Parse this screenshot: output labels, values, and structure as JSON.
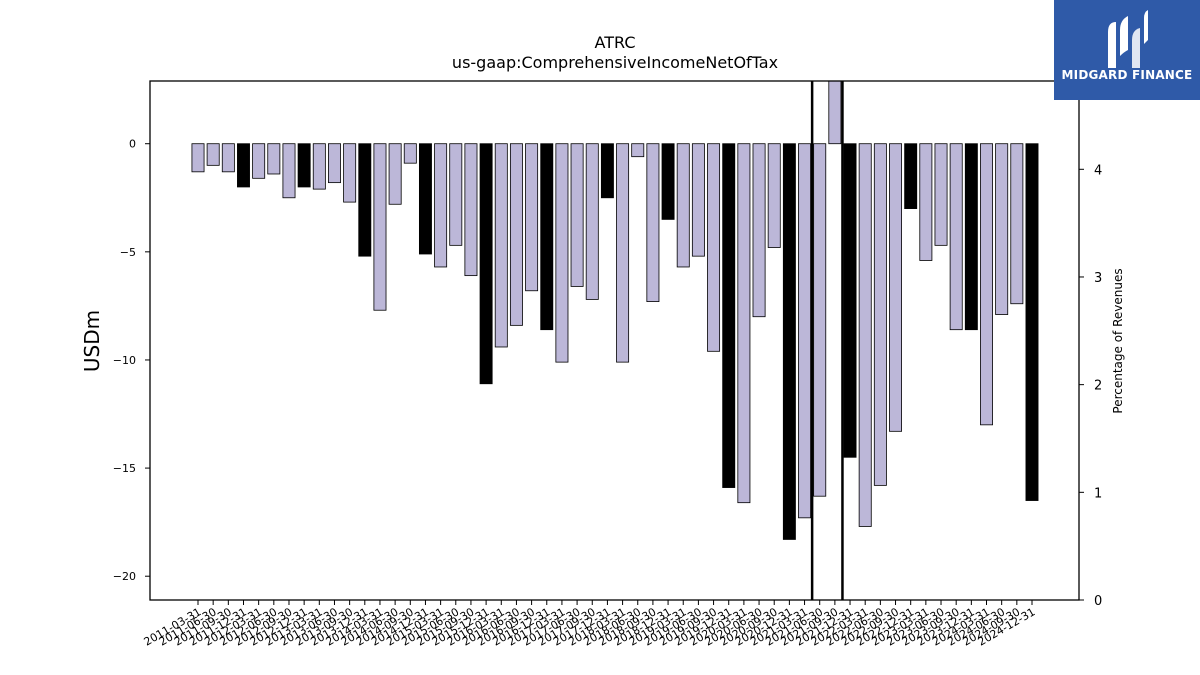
{
  "chart_data": {
    "type": "bar",
    "title": "ATRC",
    "subtitle": "us-gaap:ComprehensiveIncomeNetOfTax",
    "ylabel": "USDm",
    "y2label": "Percentage of Revenues",
    "ylim": [
      -21.1,
      2.9
    ],
    "y2lim": [
      0,
      4.82
    ],
    "yticks": [
      0,
      -5,
      -10,
      -15,
      -20
    ],
    "y2ticks": [
      0,
      1,
      2,
      3,
      4
    ],
    "grid": false,
    "categories": [
      "2011-03-31",
      "2011-06-30",
      "2011-09-30",
      "2011-12-31",
      "2012-03-31",
      "2012-06-30",
      "2012-09-30",
      "2012-12-31",
      "2013-03-31",
      "2013-06-30",
      "2013-09-30",
      "2013-12-31",
      "2014-03-31",
      "2014-06-30",
      "2014-09-30",
      "2014-12-31",
      "2015-03-31",
      "2015-06-30",
      "2015-09-30",
      "2015-12-31",
      "2016-03-31",
      "2016-06-30",
      "2016-09-30",
      "2016-12-31",
      "2017-03-31",
      "2017-06-30",
      "2017-09-30",
      "2017-12-31",
      "2018-03-31",
      "2018-06-30",
      "2018-09-30",
      "2018-12-31",
      "2019-03-31",
      "2019-06-30",
      "2019-09-30",
      "2019-12-31",
      "2020-03-31",
      "2020-06-30",
      "2020-09-30",
      "2020-12-31",
      "2021-03-31",
      "2021-06-30",
      "2021-09-30",
      "2021-12-31",
      "2022-03-31",
      "2022-06-30",
      "2022-09-30",
      "2022-12-31",
      "2023-03-31",
      "2023-06-30",
      "2023-09-30",
      "2023-12-31",
      "2024-03-31",
      "2024-06-30",
      "2024-09-30",
      "2024-12-31"
    ],
    "values": [
      -1.3,
      -1.0,
      -1.3,
      -2.0,
      -1.6,
      -1.4,
      -2.5,
      -2.0,
      -2.1,
      -1.8,
      -2.7,
      -5.2,
      -7.7,
      -2.8,
      -0.9,
      -5.1,
      -5.7,
      -4.7,
      -6.1,
      -11.1,
      -9.4,
      -8.4,
      -6.8,
      -8.6,
      -10.1,
      -6.6,
      -7.2,
      -2.5,
      -10.1,
      -0.6,
      -7.3,
      -3.5,
      -5.7,
      -5.2,
      -9.6,
      -15.9,
      -16.6,
      -8.0,
      -4.8,
      -18.3,
      -17.3,
      -16.3,
      2.9,
      -14.5,
      -17.7,
      -15.8,
      -13.3,
      -3.0,
      -5.4,
      -4.7,
      -8.6,
      -8.6,
      -13.0,
      -7.9,
      -7.4,
      -16.5
    ],
    "colors": [
      "#bcb7d8",
      "#bcb7d8",
      "#bcb7d8",
      "#000000",
      "#bcb7d8",
      "#bcb7d8",
      "#bcb7d8",
      "#000000",
      "#bcb7d8",
      "#bcb7d8",
      "#bcb7d8",
      "#000000",
      "#bcb7d8",
      "#bcb7d8",
      "#bcb7d8",
      "#000000",
      "#bcb7d8",
      "#bcb7d8",
      "#bcb7d8",
      "#000000",
      "#bcb7d8",
      "#bcb7d8",
      "#bcb7d8",
      "#000000",
      "#bcb7d8",
      "#bcb7d8",
      "#bcb7d8",
      "#000000",
      "#bcb7d8",
      "#bcb7d8",
      "#bcb7d8",
      "#000000",
      "#bcb7d8",
      "#bcb7d8",
      "#bcb7d8",
      "#000000",
      "#bcb7d8",
      "#bcb7d8",
      "#bcb7d8",
      "#000000",
      "#bcb7d8",
      "#bcb7d8",
      "#bcb7d8",
      "#000000",
      "#bcb7d8",
      "#bcb7d8",
      "#bcb7d8",
      "#000000",
      "#bcb7d8",
      "#bcb7d8",
      "#bcb7d8",
      "#000000",
      "#bcb7d8",
      "#bcb7d8",
      "#bcb7d8",
      "#000000"
    ],
    "vlines_after_index": [
      40,
      42
    ]
  },
  "logo": {
    "text": "MIDGARD FINANCE",
    "background": "#2f5aa8"
  }
}
